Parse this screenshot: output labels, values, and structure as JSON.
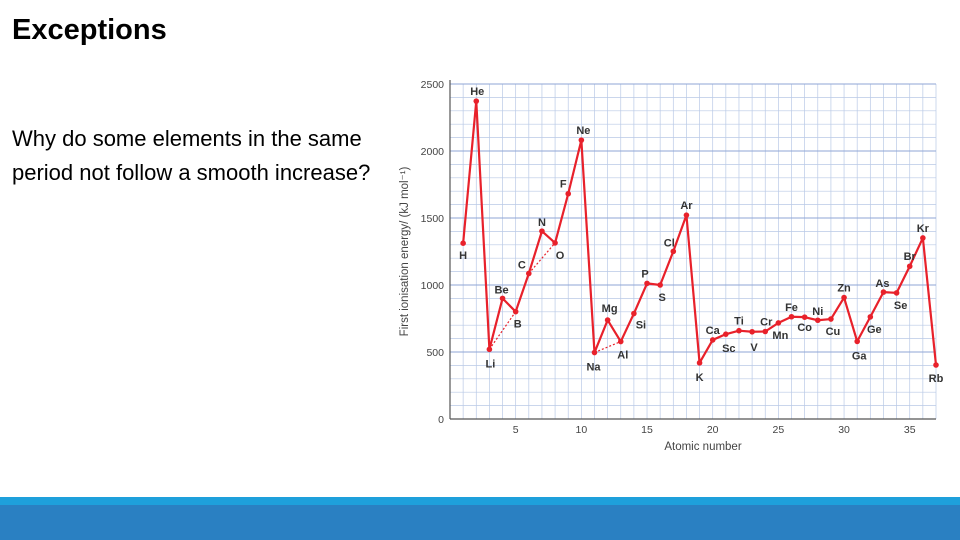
{
  "slide": {
    "title": "Exceptions",
    "body": "Why do some elements in the same period not follow a smooth increase?"
  },
  "colors": {
    "series": "#e8212b",
    "grid": "#b9c9e6",
    "footer": "#2a80c2",
    "footer_strip": "#1ea0db"
  },
  "chart_data": {
    "type": "line",
    "title": "",
    "xlabel": "Atomic number",
    "ylabel": "First ionisation energy/ (kJ mol⁻¹)",
    "xlim": [
      0,
      37
    ],
    "ylim": [
      0,
      2500
    ],
    "xticks": [
      5,
      10,
      15,
      20,
      25,
      30,
      35
    ],
    "yticks": [
      0,
      500,
      1000,
      1500,
      2000,
      2500
    ],
    "grid": true,
    "points": [
      {
        "x": 1,
        "y": 1312,
        "label": "H"
      },
      {
        "x": 2,
        "y": 2372,
        "label": "He"
      },
      {
        "x": 3,
        "y": 520,
        "label": "Li"
      },
      {
        "x": 4,
        "y": 900,
        "label": "Be"
      },
      {
        "x": 5,
        "y": 801,
        "label": "B"
      },
      {
        "x": 6,
        "y": 1086,
        "label": "C"
      },
      {
        "x": 7,
        "y": 1402,
        "label": "N"
      },
      {
        "x": 8,
        "y": 1314,
        "label": "O"
      },
      {
        "x": 9,
        "y": 1681,
        "label": "F"
      },
      {
        "x": 10,
        "y": 2081,
        "label": "Ne"
      },
      {
        "x": 11,
        "y": 496,
        "label": "Na"
      },
      {
        "x": 12,
        "y": 738,
        "label": "Mg"
      },
      {
        "x": 13,
        "y": 578,
        "label": "Al"
      },
      {
        "x": 14,
        "y": 787,
        "label": "Si"
      },
      {
        "x": 15,
        "y": 1012,
        "label": "P"
      },
      {
        "x": 16,
        "y": 1000,
        "label": "S"
      },
      {
        "x": 17,
        "y": 1251,
        "label": "Cl"
      },
      {
        "x": 18,
        "y": 1521,
        "label": "Ar"
      },
      {
        "x": 19,
        "y": 419,
        "label": "K"
      },
      {
        "x": 20,
        "y": 590,
        "label": "Ca"
      },
      {
        "x": 21,
        "y": 633,
        "label": "Sc"
      },
      {
        "x": 22,
        "y": 659,
        "label": "Ti"
      },
      {
        "x": 23,
        "y": 651,
        "label": "V"
      },
      {
        "x": 24,
        "y": 653,
        "label": "Cr"
      },
      {
        "x": 25,
        "y": 717,
        "label": "Mn"
      },
      {
        "x": 26,
        "y": 763,
        "label": "Fe"
      },
      {
        "x": 27,
        "y": 760,
        "label": "Co"
      },
      {
        "x": 28,
        "y": 737,
        "label": "Ni"
      },
      {
        "x": 29,
        "y": 746,
        "label": "Cu"
      },
      {
        "x": 30,
        "y": 906,
        "label": "Zn"
      },
      {
        "x": 31,
        "y": 579,
        "label": "Ga"
      },
      {
        "x": 32,
        "y": 762,
        "label": "Ge"
      },
      {
        "x": 33,
        "y": 947,
        "label": "As"
      },
      {
        "x": 34,
        "y": 941,
        "label": "Se"
      },
      {
        "x": 35,
        "y": 1140,
        "label": "Br"
      },
      {
        "x": 36,
        "y": 1351,
        "label": "Kr"
      },
      {
        "x": 37,
        "y": 403,
        "label": "Rb"
      }
    ],
    "dotted_trend_lines": [
      {
        "from": 3,
        "to": 5
      },
      {
        "from": 6,
        "to": 8
      },
      {
        "from": 11,
        "to": 13
      }
    ]
  }
}
